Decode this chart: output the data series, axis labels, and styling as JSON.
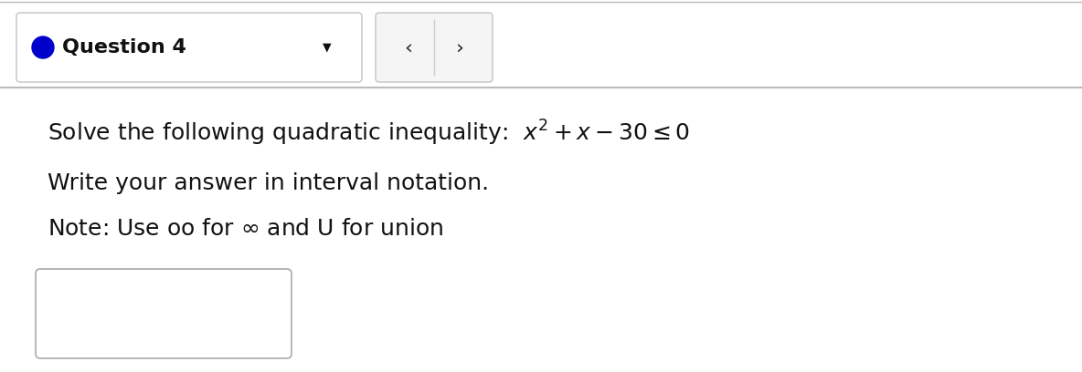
{
  "background_color": "#e8e8e8",
  "content_background": "#ffffff",
  "header_box_color": "#ffffff",
  "header_box_border": "#cccccc",
  "header_text": "Question 4",
  "header_dot_color": "#0000cc",
  "nav_box_color": "#f5f5f5",
  "nav_box_border": "#cccccc",
  "nav_left": "‹",
  "nav_right": "›",
  "dropdown_arrow": "▼",
  "line1_math": "Solve the following quadratic inequality: $x^2 + x - 30 \\leq 0$",
  "line2": "Write your answer in interval notation.",
  "line3": "Note: Use oo for $\\infty$ and U for union",
  "input_box_color": "#ffffff",
  "input_box_border": "#aaaaaa",
  "font_size_header": 16,
  "font_size_body": 18,
  "separator_color": "#bbbbbb",
  "top_line_color": "#bbbbbb"
}
